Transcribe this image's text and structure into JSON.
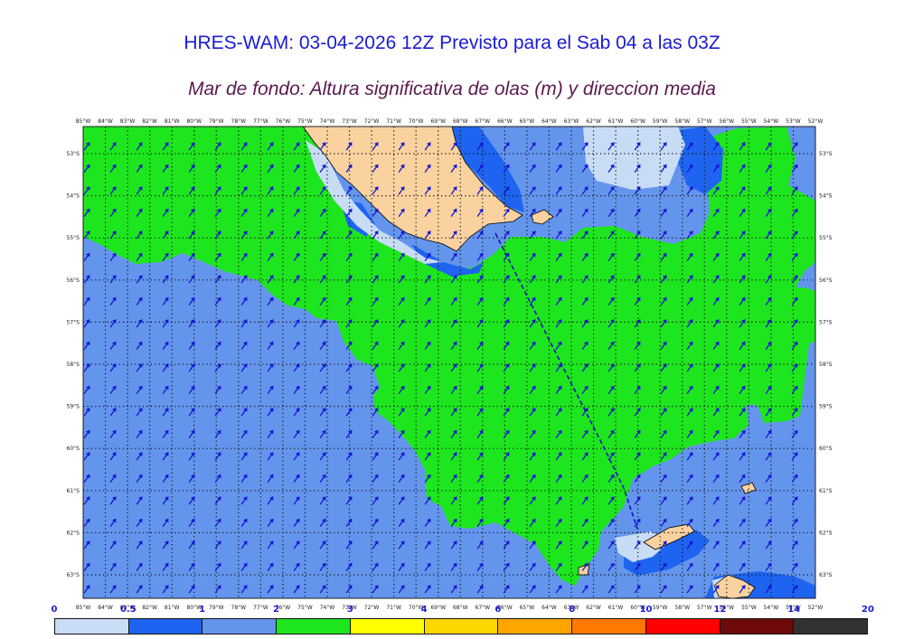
{
  "header": {
    "title": "HRES-WAM: 03-04-2026 12Z Previsto para el Sab 04 a las 03Z",
    "subtitle": "Mar de fondo: Altura significativa de olas (m) y direccion media"
  },
  "map": {
    "top_lon_labels": [
      "85°W",
      "84°W",
      "83°W",
      "82°W",
      "81°W",
      "80°W",
      "79°W",
      "78°W",
      "77°W",
      "76°W",
      "75°W",
      "74°W",
      "73°W",
      "72°W",
      "71°W",
      "70°W",
      "69°W",
      "68°W",
      "67°W",
      "66°W",
      "65°W",
      "64°W",
      "63°W",
      "62°W",
      "61°W",
      "60°W",
      "59°W",
      "58°W",
      "57°W",
      "56°W",
      "55°W",
      "54°W",
      "53°W",
      "52°W"
    ],
    "bottom_lon_labels": [
      "85°W",
      "84°W",
      "83°W",
      "82°W",
      "81°W",
      "80°W",
      "79°W",
      "78°W",
      "77°W",
      "76°W",
      "75°W",
      "74°W",
      "73°W",
      "72°W",
      "71°W",
      "70°W",
      "69°W",
      "68°W",
      "67°W",
      "66°W",
      "65°W",
      "64°W",
      "63°W",
      "62°W",
      "61°W",
      "60°W",
      "59°W",
      "58°W",
      "57°W",
      "56°W",
      "55°W",
      "54°W",
      "53°W",
      "52°W"
    ],
    "lat_labels": [
      "53°S",
      "54°S",
      "55°S",
      "56°S",
      "57°S",
      "58°S",
      "59°S",
      "60°S",
      "61°S",
      "62°S",
      "63°S"
    ],
    "colors": {
      "sea_low": "#c8dcf5",
      "sea_blue": "#6495ed",
      "sea_dark": "#1e64f0",
      "sea_green": "#1ee61e",
      "land": "#fad2a0",
      "arrow": "#1414d2",
      "route": "#1414b4"
    }
  },
  "colorbar": {
    "labels": [
      "0",
      "0.5",
      "1",
      "2",
      "3",
      "4",
      "6",
      "8",
      "10",
      "12",
      "14",
      "20"
    ],
    "colors": [
      "#c8dcf5",
      "#1e64f0",
      "#6495ed",
      "#1ee61e",
      "#ffff00",
      "#ffd700",
      "#ffa500",
      "#ff7800",
      "#ff0000",
      "#6e0a0a",
      "#323232"
    ]
  }
}
